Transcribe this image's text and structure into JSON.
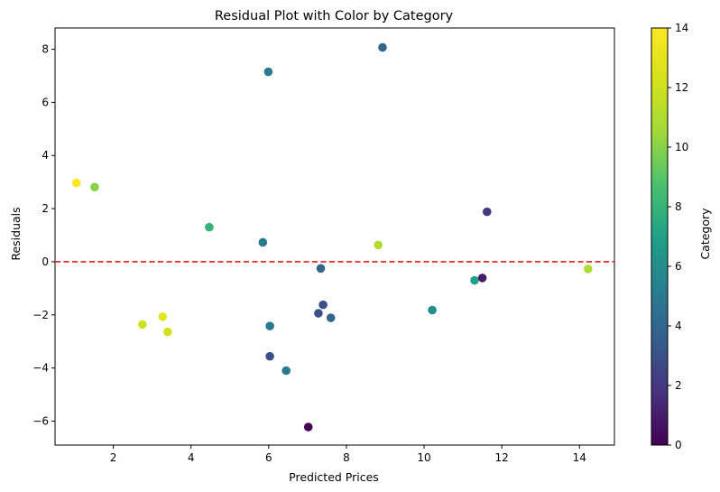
{
  "chart_data": {
    "type": "scatter",
    "title": "Residual Plot with Color by Category",
    "xlabel": "Predicted Prices",
    "ylabel": "Residuals",
    "xlim": [
      0.5,
      14.9
    ],
    "ylim": [
      -6.9,
      8.8
    ],
    "xticks": [
      2,
      4,
      6,
      8,
      10,
      12,
      14
    ],
    "yticks": [
      -6,
      -4,
      -2,
      0,
      2,
      4,
      6,
      8
    ],
    "grid": false,
    "reference_line": {
      "y": 0,
      "style": "dashed",
      "color": "#e41a1c"
    },
    "colorbar": {
      "label": "Category",
      "colormap": "viridis",
      "range": [
        0,
        14
      ],
      "ticks": [
        0,
        2,
        4,
        6,
        8,
        10,
        12,
        14
      ]
    },
    "points": [
      {
        "x": 1.05,
        "y": 2.97,
        "category": 14
      },
      {
        "x": 1.52,
        "y": 2.81,
        "category": 10
      },
      {
        "x": 2.75,
        "y": -2.36,
        "category": 12
      },
      {
        "x": 3.27,
        "y": -2.07,
        "category": 13
      },
      {
        "x": 3.4,
        "y": -2.64,
        "category": 12
      },
      {
        "x": 4.47,
        "y": 1.3,
        "category": 8
      },
      {
        "x": 5.85,
        "y": 0.73,
        "category": 5
      },
      {
        "x": 5.99,
        "y": 7.15,
        "category": 5
      },
      {
        "x": 6.03,
        "y": -2.42,
        "category": 5
      },
      {
        "x": 6.03,
        "y": -3.56,
        "category": 3
      },
      {
        "x": 6.45,
        "y": -4.1,
        "category": 5
      },
      {
        "x": 7.02,
        "y": -6.22,
        "category": 0
      },
      {
        "x": 7.28,
        "y": -1.94,
        "category": 3
      },
      {
        "x": 7.34,
        "y": -0.25,
        "category": 4
      },
      {
        "x": 7.4,
        "y": -1.62,
        "category": 3
      },
      {
        "x": 7.6,
        "y": -2.11,
        "category": 4
      },
      {
        "x": 8.82,
        "y": 0.63,
        "category": 11
      },
      {
        "x": 8.93,
        "y": 8.07,
        "category": 4
      },
      {
        "x": 10.21,
        "y": -1.82,
        "category": 6
      },
      {
        "x": 11.3,
        "y": -0.7,
        "category": 7
      },
      {
        "x": 11.5,
        "y": -0.61,
        "category": 1
      },
      {
        "x": 11.62,
        "y": 1.88,
        "category": 2
      },
      {
        "x": 14.22,
        "y": -0.27,
        "category": 11
      }
    ]
  }
}
